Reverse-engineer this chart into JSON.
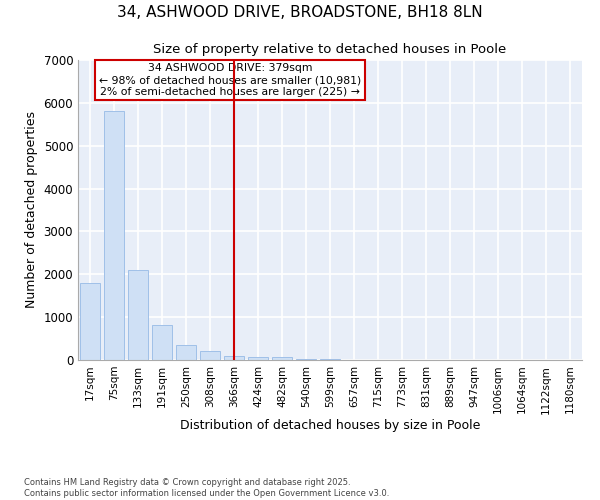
{
  "title": "34, ASHWOOD DRIVE, BROADSTONE, BH18 8LN",
  "subtitle": "Size of property relative to detached houses in Poole",
  "xlabel": "Distribution of detached houses by size in Poole",
  "ylabel": "Number of detached properties",
  "categories": [
    "17sqm",
    "75sqm",
    "133sqm",
    "191sqm",
    "250sqm",
    "308sqm",
    "366sqm",
    "424sqm",
    "482sqm",
    "540sqm",
    "599sqm",
    "657sqm",
    "715sqm",
    "773sqm",
    "831sqm",
    "889sqm",
    "947sqm",
    "1006sqm",
    "1064sqm",
    "1122sqm",
    "1180sqm"
  ],
  "values": [
    1800,
    5800,
    2100,
    820,
    360,
    210,
    105,
    80,
    62,
    30,
    20,
    0,
    0,
    0,
    0,
    0,
    0,
    0,
    0,
    0,
    0
  ],
  "bar_color": "#cfe0f5",
  "bar_edge_color": "#a0c0e8",
  "vline_x_index": 6,
  "vline_color": "#cc0000",
  "annotation_title": "34 ASHWOOD DRIVE: 379sqm",
  "annotation_line1": "← 98% of detached houses are smaller (10,981)",
  "annotation_line2": "2% of semi-detached houses are larger (225) →",
  "annotation_box_edgecolor": "#cc0000",
  "ylim": [
    0,
    7000
  ],
  "yticks": [
    0,
    1000,
    2000,
    3000,
    4000,
    5000,
    6000,
    7000
  ],
  "figure_bg": "#ffffff",
  "axes_bg": "#e8eef8",
  "grid_color": "#ffffff",
  "footer_line1": "Contains HM Land Registry data © Crown copyright and database right 2025.",
  "footer_line2": "Contains public sector information licensed under the Open Government Licence v3.0."
}
